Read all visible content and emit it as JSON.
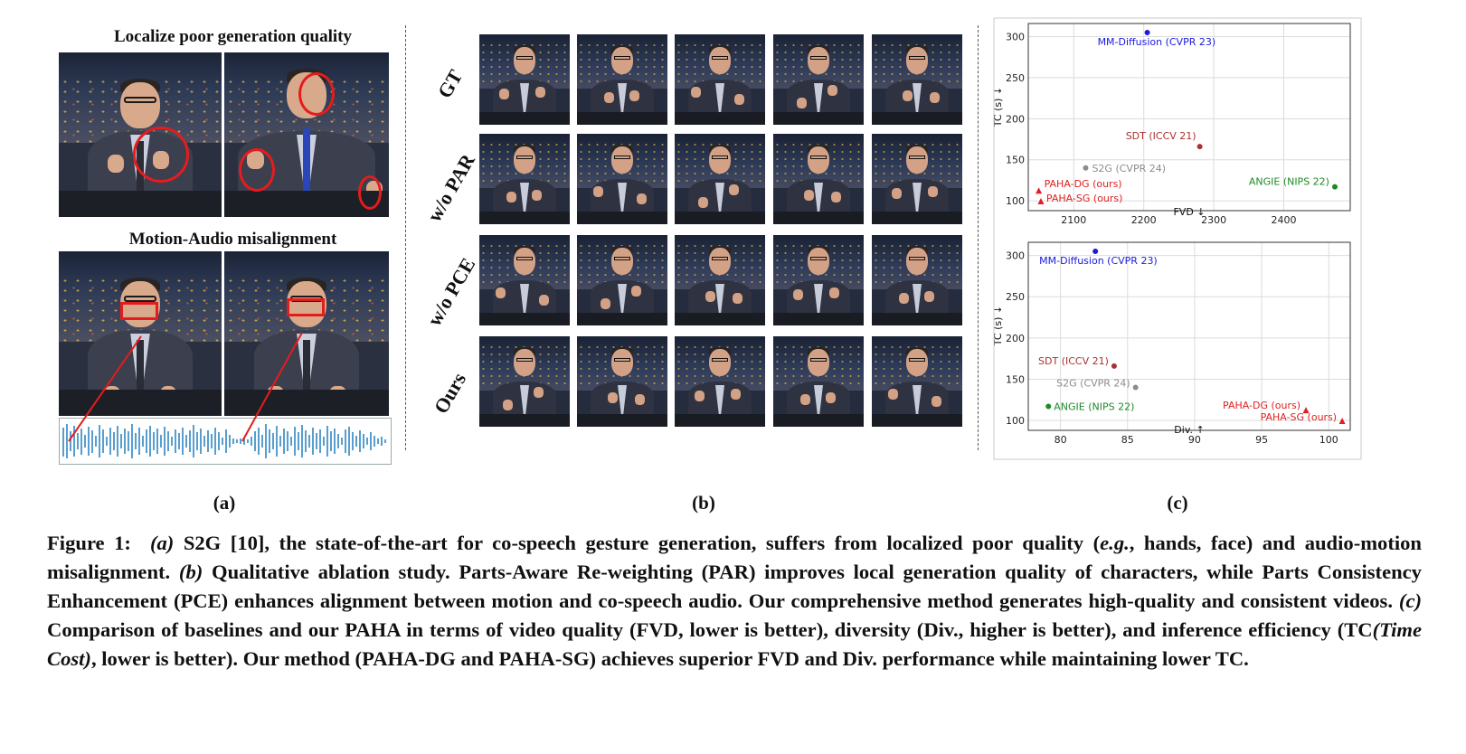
{
  "panel_a": {
    "title_top": "Localize poor generation quality",
    "title_bottom": "Motion-Audio misalignment",
    "label": "(a)"
  },
  "panel_b": {
    "rows": [
      "GT",
      "w/o PAR",
      "w/o PCE",
      "Ours"
    ],
    "label": "(b)"
  },
  "panel_c": {
    "label": "(c)",
    "colors": {
      "mm": "#1a1adf",
      "sdt": "#a8322d",
      "s2g": "#8c8c8c",
      "angie": "#1d8a24",
      "paha": "#e01f1f"
    }
  },
  "chart_data": [
    {
      "type": "scatter",
      "xlabel": "FVD ↓",
      "ylabel": "TC (s) ↓",
      "xticks": [
        2100,
        2200,
        2300,
        2400
      ],
      "yticks": [
        100,
        150,
        200,
        250,
        300
      ],
      "xlim": [
        2035,
        2495
      ],
      "ylim": [
        88,
        316
      ],
      "grid": true,
      "points": [
        {
          "name": "MM-Diffusion (CVPR 23)",
          "x": 2205,
          "y": 305,
          "marker": "circle",
          "color": "#1a1adf"
        },
        {
          "name": "SDT (ICCV 21)",
          "x": 2280,
          "y": 166,
          "marker": "circle",
          "color": "#a8322d"
        },
        {
          "name": "S2G (CVPR 24)",
          "x": 2117,
          "y": 140,
          "marker": "circle",
          "color": "#8c8c8c"
        },
        {
          "name": "ANGIE (NIPS 22)",
          "x": 2473,
          "y": 117,
          "marker": "circle",
          "color": "#1d8a24"
        },
        {
          "name": "PAHA-DG (ours)",
          "x": 2050,
          "y": 112,
          "marker": "triangle",
          "color": "#e01f1f"
        },
        {
          "name": "PAHA-SG (ours)",
          "x": 2053,
          "y": 99,
          "marker": "triangle",
          "color": "#e01f1f"
        }
      ]
    },
    {
      "type": "scatter",
      "xlabel": "Div. ↑",
      "ylabel": "TC (s) ↓",
      "xticks": [
        80,
        85,
        90,
        95,
        100
      ],
      "yticks": [
        100,
        150,
        200,
        250,
        300
      ],
      "xlim": [
        77.6,
        101.6
      ],
      "ylim": [
        88,
        316
      ],
      "grid": true,
      "points": [
        {
          "name": "MM-Diffusion (CVPR 23)",
          "x": 82.6,
          "y": 305,
          "marker": "circle",
          "color": "#1a1adf"
        },
        {
          "name": "SDT (ICCV 21)",
          "x": 84.0,
          "y": 166,
          "marker": "circle",
          "color": "#a8322d"
        },
        {
          "name": "S2G (CVPR 24)",
          "x": 85.6,
          "y": 140,
          "marker": "circle",
          "color": "#8c8c8c"
        },
        {
          "name": "ANGIE (NIPS 22)",
          "x": 79.1,
          "y": 117,
          "marker": "circle",
          "color": "#1d8a24"
        },
        {
          "name": "PAHA-DG (ours)",
          "x": 98.3,
          "y": 112,
          "marker": "triangle",
          "color": "#e01f1f"
        },
        {
          "name": "PAHA-SG (ours)",
          "x": 101.0,
          "y": 99,
          "marker": "triangle",
          "color": "#e01f1f"
        }
      ]
    }
  ],
  "caption": {
    "fig": "Figure 1:",
    "a_tag": "(a)",
    "a_text": "S2G [10], the state-of-the-art for co-speech gesture generation, suffers from localized poor quality (",
    "eg": "e.g.",
    "a_text2": ", hands, face) and audio-motion misalignment.",
    "b_tag": "(b)",
    "b_text": "Qualitative ablation study. Parts-Aware Re-weighting (PAR) improves local generation quality of characters, while Parts Consistency Enhancement (PCE) enhances alignment between motion and co-speech audio. Our comprehensive method generates high-quality and consistent videos.",
    "c_tag": "(c)",
    "c_text": "Comparison of baselines and our PAHA in terms of video quality (FVD, lower is better), diversity (Div., higher is better), and inference efficiency (TC",
    "tc_italic": "(Time Cost)",
    "c_text2": ", lower is better). Our method (PAHA-DG and PAHA-SG) achieves superior FVD and Div. performance while maintaining lower TC."
  }
}
